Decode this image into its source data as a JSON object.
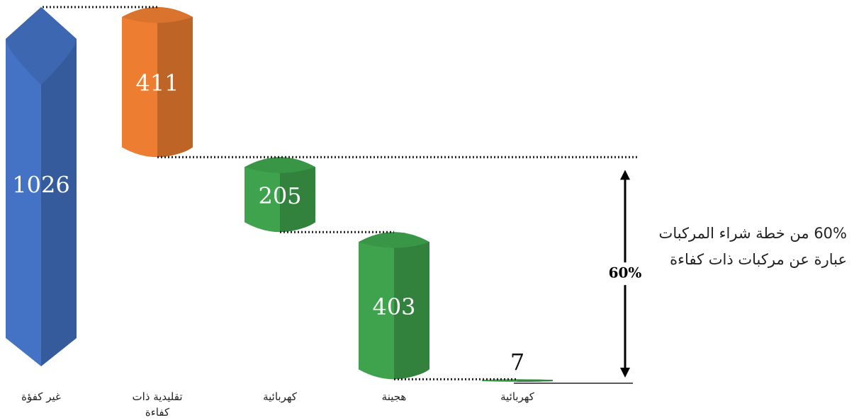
{
  "chart_data": {
    "type": "waterfall",
    "categories": [
      "غير كفؤة",
      "تقليدية ذات كفاءة",
      "كهربائية",
      "هجينة",
      "كهربائية"
    ],
    "values": [
      1026,
      411,
      205,
      403,
      7
    ],
    "colors": [
      "#4472c4",
      "#ed7d31",
      "#3fa34d",
      "#3fa34d",
      "#3fa34d"
    ],
    "annotations": [
      "60%",
      "60% من خطة شراء المركبات عبارة عن مركبات ذات كفاءة"
    ]
  }
}
